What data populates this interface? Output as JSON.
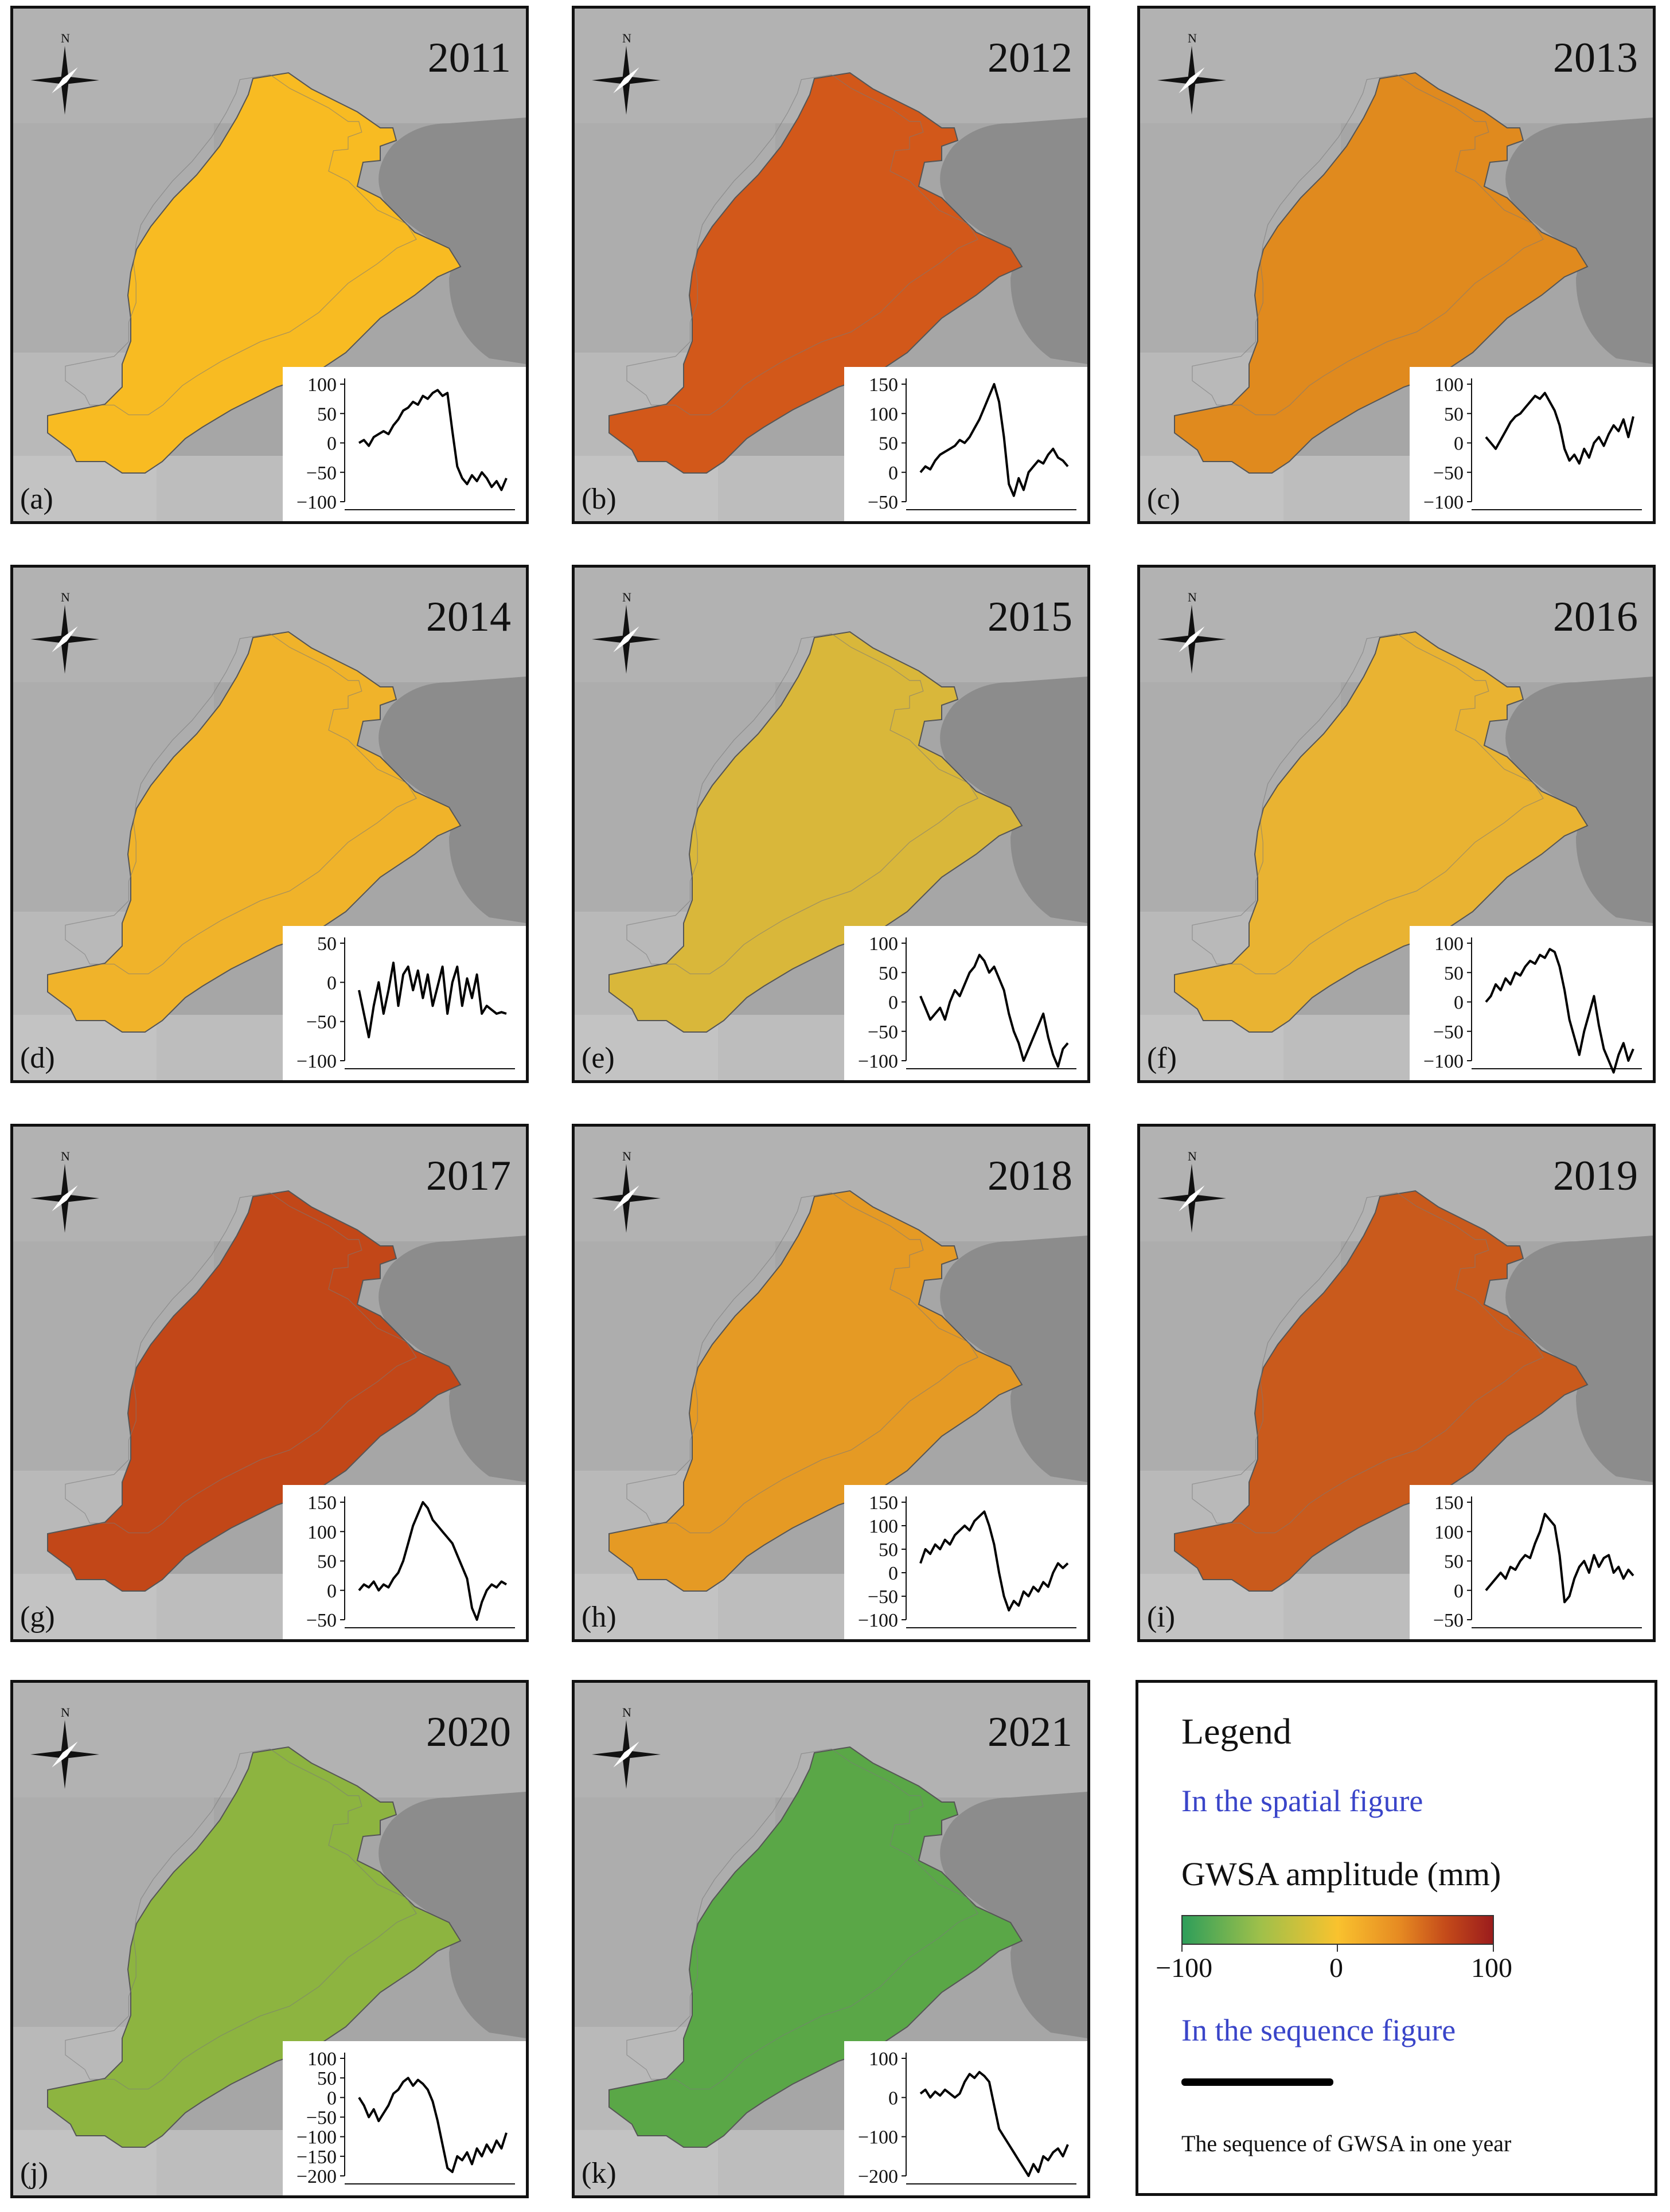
{
  "panels": [
    {
      "year": "2011",
      "letter": "(a)",
      "fill": "#f8bb22",
      "ticks": [
        "100",
        "50",
        "0",
        "-50",
        "-100"
      ],
      "ymin": -100,
      "ymax": 100,
      "series": [
        0,
        5,
        -5,
        10,
        15,
        20,
        15,
        30,
        40,
        55,
        60,
        70,
        65,
        80,
        75,
        85,
        90,
        80,
        85,
        20,
        -40,
        -60,
        -70,
        -55,
        -65,
        -50,
        -60,
        -75,
        -65,
        -80,
        -60
      ]
    },
    {
      "year": "2012",
      "letter": "(b)",
      "fill": "#d2581a",
      "ticks": [
        "150",
        "100",
        "50",
        "0",
        "-50"
      ],
      "ymin": -50,
      "ymax": 150,
      "series": [
        0,
        10,
        5,
        20,
        30,
        35,
        40,
        45,
        55,
        50,
        60,
        75,
        90,
        110,
        130,
        150,
        120,
        60,
        -20,
        -40,
        -10,
        -30,
        0,
        10,
        20,
        15,
        30,
        40,
        25,
        20,
        10
      ]
    },
    {
      "year": "2013",
      "letter": "(c)",
      "fill": "#e08a1e",
      "ticks": [
        "100",
        "50",
        "0",
        "-50",
        "-100"
      ],
      "ymin": -100,
      "ymax": 100,
      "series": [
        10,
        0,
        -10,
        5,
        20,
        35,
        45,
        50,
        60,
        70,
        80,
        75,
        85,
        70,
        55,
        30,
        -10,
        -30,
        -20,
        -35,
        -10,
        -25,
        0,
        10,
        -5,
        15,
        30,
        20,
        40,
        10,
        45
      ]
    },
    {
      "year": "2014",
      "letter": "(d)",
      "fill": "#f0b32a",
      "ticks": [
        "50",
        "0",
        "-50",
        "-100"
      ],
      "ymin": -100,
      "ymax": 50,
      "series": [
        -10,
        -40,
        -70,
        -30,
        0,
        -40,
        -10,
        25,
        -30,
        10,
        20,
        -10,
        15,
        -20,
        10,
        -30,
        -5,
        20,
        -40,
        0,
        20,
        -30,
        5,
        -20,
        10,
        -40,
        -30,
        -35,
        -40,
        -38,
        -40
      ]
    },
    {
      "year": "2015",
      "letter": "(e)",
      "fill": "#d9b73a",
      "ticks": [
        "100",
        "50",
        "0",
        "-50",
        "-100"
      ],
      "ymin": -100,
      "ymax": 100,
      "series": [
        10,
        -10,
        -30,
        -20,
        -10,
        -30,
        0,
        20,
        10,
        30,
        50,
        60,
        80,
        70,
        50,
        60,
        40,
        20,
        -20,
        -50,
        -70,
        -100,
        -80,
        -60,
        -40,
        -20,
        -60,
        -90,
        -110,
        -80,
        -70
      ]
    },
    {
      "year": "2016",
      "letter": "(f)",
      "fill": "#e9b332",
      "ticks": [
        "100",
        "50",
        "0",
        "-50",
        "-100"
      ],
      "ymin": -100,
      "ymax": 100,
      "series": [
        0,
        10,
        30,
        20,
        40,
        30,
        50,
        45,
        60,
        70,
        65,
        80,
        75,
        90,
        85,
        60,
        20,
        -30,
        -60,
        -90,
        -50,
        -20,
        10,
        -40,
        -80,
        -100,
        -120,
        -90,
        -70,
        -100,
        -80
      ]
    },
    {
      "year": "2017",
      "letter": "(g)",
      "fill": "#c24718",
      "ticks": [
        "150",
        "100",
        "50",
        "0",
        "-50"
      ],
      "ymin": -50,
      "ymax": 150,
      "series": [
        0,
        10,
        5,
        15,
        0,
        10,
        5,
        20,
        30,
        50,
        80,
        110,
        130,
        150,
        140,
        120,
        110,
        100,
        90,
        80,
        60,
        40,
        20,
        -30,
        -50,
        -20,
        0,
        10,
        5,
        15,
        10
      ]
    },
    {
      "year": "2018",
      "letter": "(h)",
      "fill": "#e59a24",
      "ticks": [
        "150",
        "100",
        "50",
        "0",
        "-50",
        "-100"
      ],
      "ymin": -100,
      "ymax": 150,
      "series": [
        20,
        50,
        40,
        60,
        50,
        70,
        60,
        80,
        90,
        100,
        90,
        110,
        120,
        130,
        100,
        60,
        0,
        -50,
        -80,
        -60,
        -70,
        -40,
        -50,
        -30,
        -40,
        -20,
        -30,
        0,
        20,
        10,
        20
      ]
    },
    {
      "year": "2019",
      "letter": "(i)",
      "fill": "#c95a1c",
      "ticks": [
        "150",
        "100",
        "50",
        "0",
        "-50"
      ],
      "ymin": -50,
      "ymax": 150,
      "series": [
        0,
        10,
        20,
        30,
        20,
        40,
        35,
        50,
        60,
        55,
        80,
        100,
        130,
        120,
        110,
        60,
        -20,
        -10,
        20,
        40,
        50,
        30,
        60,
        40,
        55,
        60,
        30,
        40,
        20,
        35,
        25
      ]
    },
    {
      "year": "2020",
      "letter": "(j)",
      "fill": "#8db440",
      "ticks": [
        "100",
        "50",
        "0",
        "-50",
        "-100",
        "-150",
        "-200"
      ],
      "ymin": -200,
      "ymax": 100,
      "series": [
        0,
        -20,
        -50,
        -30,
        -60,
        -40,
        -20,
        10,
        20,
        40,
        50,
        30,
        45,
        35,
        20,
        -10,
        -60,
        -120,
        -180,
        -190,
        -150,
        -160,
        -140,
        -170,
        -130,
        -150,
        -120,
        -140,
        -110,
        -130,
        -90
      ]
    },
    {
      "year": "2021",
      "letter": "(k)",
      "fill": "#5aa747",
      "ticks": [
        "100",
        "0",
        "-100",
        "-200"
      ],
      "ymin": -200,
      "ymax": 100,
      "series": [
        10,
        20,
        0,
        15,
        5,
        20,
        10,
        0,
        10,
        40,
        60,
        50,
        65,
        55,
        40,
        -20,
        -80,
        -100,
        -120,
        -140,
        -160,
        -180,
        -200,
        -170,
        -190,
        -150,
        -160,
        -140,
        -130,
        -150,
        -120
      ]
    }
  ],
  "north_label": "N",
  "legend": {
    "title": "Legend",
    "spatial_heading": "In the spatial figure",
    "gwsa_label": "GWSA amplitude (mm)",
    "min_label": "−100",
    "mid_label": "0",
    "max_label": "100",
    "sequence_heading": "In the sequence figure",
    "sequence_caption": "The sequence of GWSA in one year"
  },
  "colors": {
    "low": "#2e9e5a",
    "mid": "#f9c22e",
    "high": "#9b1c1c",
    "legend_heading": "#3a45c9"
  }
}
